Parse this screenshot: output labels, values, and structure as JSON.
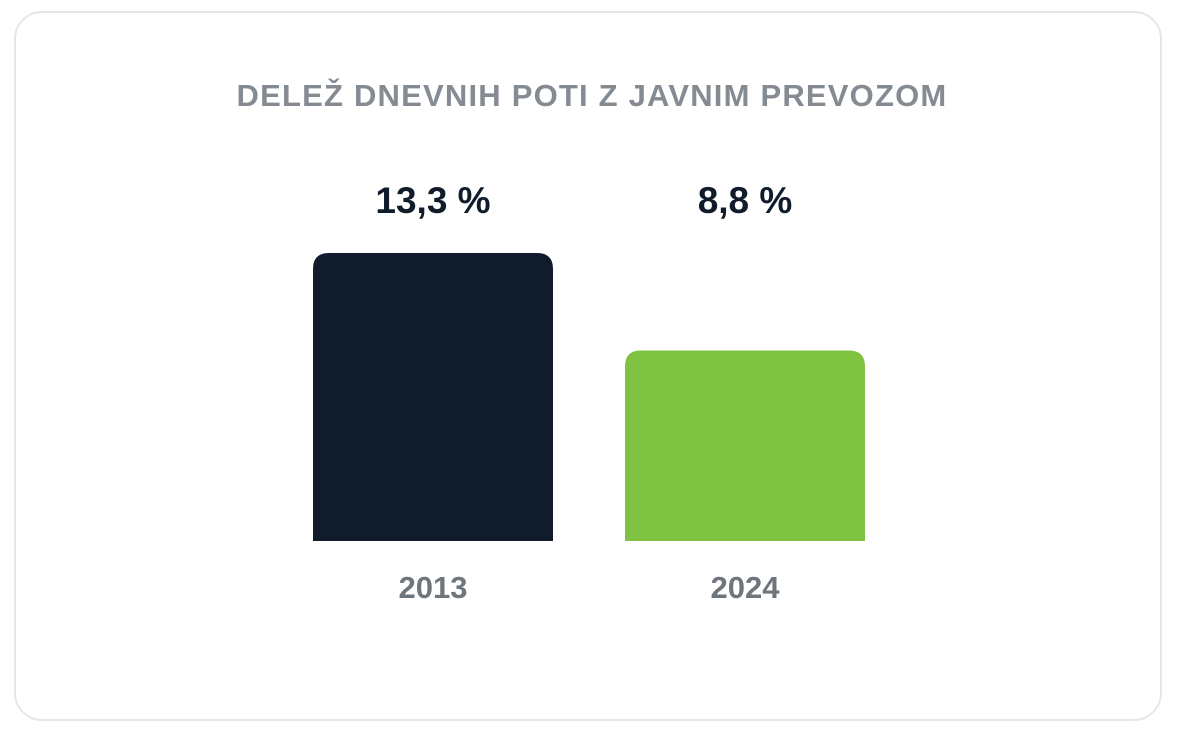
{
  "chart_data": {
    "type": "bar",
    "title": "DELEŽ DNEVNIH POTI Z JAVNIM PREVOZOM",
    "categories": [
      "2013",
      "2024"
    ],
    "values": [
      13.3,
      8.8
    ],
    "value_labels": [
      "13,3 %",
      "8,8 %"
    ],
    "unit": "%",
    "bar_colors": [
      "#101c2c",
      "#80c242"
    ],
    "xlabel": "",
    "ylabel": "",
    "grid": false,
    "legend": "none"
  },
  "colors": {
    "title": "#858b93",
    "value_label": "#101c2c",
    "category_label": "#6f757d",
    "card_border": "#e5e6e8"
  }
}
